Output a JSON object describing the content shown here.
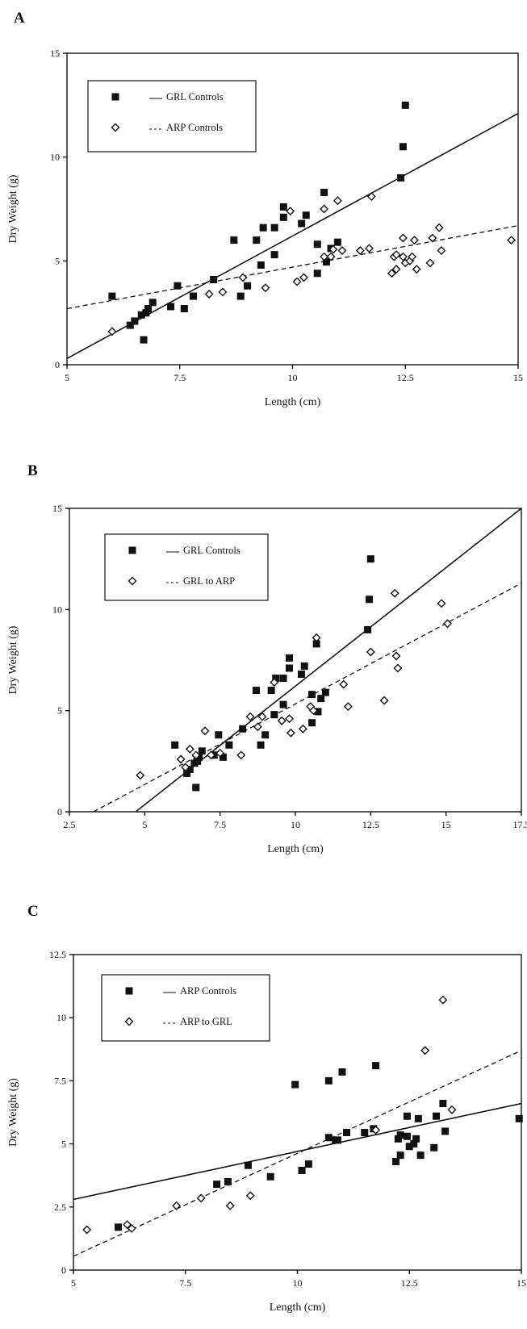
{
  "chart_data": [
    {
      "type": "scatter",
      "panel_label": "A",
      "xlabel": "Length (cm)",
      "ylabel": "Dry Weight (g)",
      "xlim": [
        5,
        15
      ],
      "ylim": [
        0,
        15
      ],
      "xticks": [
        5,
        7.5,
        10,
        12.5,
        15
      ],
      "xtick_labels": [
        "5",
        "7.5",
        "10",
        "12.5",
        "15"
      ],
      "yticks": [
        0,
        5,
        10,
        15
      ],
      "ytick_labels": [
        "0",
        "5",
        "10",
        "15"
      ],
      "legend": "top-left",
      "series": [
        {
          "name": "GRL Controls",
          "marker": "filled-square",
          "line_style": "solid",
          "fit": [
            [
              5,
              0.3
            ],
            [
              15,
              12.1
            ]
          ],
          "points": [
            [
              6,
              3.3
            ],
            [
              6.4,
              1.9
            ],
            [
              6.5,
              2.1
            ],
            [
              6.65,
              2.4
            ],
            [
              6.7,
              1.2
            ],
            [
              6.75,
              2.5
            ],
            [
              6.8,
              2.7
            ],
            [
              6.9,
              3.0
            ],
            [
              7.3,
              2.8
            ],
            [
              7.45,
              3.8
            ],
            [
              7.6,
              2.7
            ],
            [
              7.8,
              3.3
            ],
            [
              8.25,
              4.1
            ],
            [
              8.7,
              6.0
            ],
            [
              8.85,
              3.3
            ],
            [
              9.0,
              3.8
            ],
            [
              9.2,
              6.0
            ],
            [
              9.3,
              4.8
            ],
            [
              9.35,
              6.6
            ],
            [
              9.6,
              5.3
            ],
            [
              9.6,
              6.6
            ],
            [
              9.8,
              7.1
            ],
            [
              9.8,
              7.6
            ],
            [
              10.2,
              6.8
            ],
            [
              10.3,
              7.2
            ],
            [
              10.55,
              5.8
            ],
            [
              10.55,
              4.4
            ],
            [
              10.7,
              8.3
            ],
            [
              10.75,
              4.95
            ],
            [
              10.85,
              5.6
            ],
            [
              11.0,
              5.9
            ],
            [
              12.4,
              9.0
            ],
            [
              12.45,
              10.5
            ],
            [
              12.5,
              12.5
            ]
          ]
        },
        {
          "name": "ARP Controls",
          "marker": "open-diamond",
          "line_style": "dashed",
          "fit": [
            [
              5,
              2.7
            ],
            [
              15,
              6.7
            ]
          ],
          "points": [
            [
              6,
              1.6
            ],
            [
              8.15,
              3.4
            ],
            [
              8.45,
              3.5
            ],
            [
              8.9,
              4.2
            ],
            [
              9.4,
              3.7
            ],
            [
              9.95,
              7.4
            ],
            [
              10.1,
              4.0
            ],
            [
              10.25,
              4.2
            ],
            [
              10.7,
              5.2
            ],
            [
              10.7,
              7.5
            ],
            [
              10.85,
              5.2
            ],
            [
              10.9,
              5.55
            ],
            [
              11.0,
              7.9
            ],
            [
              11.1,
              5.5
            ],
            [
              11.5,
              5.5
            ],
            [
              11.7,
              5.6
            ],
            [
              11.75,
              8.1
            ],
            [
              12.2,
              4.4
            ],
            [
              12.25,
              5.2
            ],
            [
              12.3,
              5.3
            ],
            [
              12.3,
              4.6
            ],
            [
              12.45,
              5.2
            ],
            [
              12.45,
              6.1
            ],
            [
              12.5,
              4.9
            ],
            [
              12.6,
              5.0
            ],
            [
              12.65,
              5.2
            ],
            [
              12.7,
              6.0
            ],
            [
              12.75,
              4.6
            ],
            [
              13.05,
              4.9
            ],
            [
              13.1,
              6.1
            ],
            [
              13.25,
              6.6
            ],
            [
              13.3,
              5.5
            ],
            [
              14.85,
              6.0
            ]
          ]
        }
      ]
    },
    {
      "type": "scatter",
      "panel_label": "B",
      "xlabel": "Length (cm)",
      "ylabel": "Dry Weight (g)",
      "xlim": [
        2.5,
        17.5
      ],
      "ylim": [
        0,
        15
      ],
      "xticks": [
        2.5,
        5,
        7.5,
        10,
        12.5,
        15,
        17.5
      ],
      "xtick_labels": [
        "2.5",
        "5",
        "7.5",
        "10",
        "12.5",
        "15",
        "17.5"
      ],
      "yticks": [
        0,
        5,
        10,
        15
      ],
      "ytick_labels": [
        "0",
        "5",
        "10",
        "15"
      ],
      "legend": "top-left",
      "series": [
        {
          "name": "GRL Controls",
          "marker": "filled-square",
          "line_style": "solid",
          "fit": [
            [
              4.7,
              0
            ],
            [
              17.5,
              15
            ]
          ],
          "points": [
            [
              6,
              3.3
            ],
            [
              6.4,
              1.9
            ],
            [
              6.5,
              2.1
            ],
            [
              6.65,
              2.4
            ],
            [
              6.7,
              1.2
            ],
            [
              6.75,
              2.5
            ],
            [
              6.8,
              2.7
            ],
            [
              6.9,
              3.0
            ],
            [
              7.3,
              2.8
            ],
            [
              7.45,
              3.8
            ],
            [
              7.6,
              2.7
            ],
            [
              7.8,
              3.3
            ],
            [
              8.25,
              4.1
            ],
            [
              8.7,
              6.0
            ],
            [
              8.85,
              3.3
            ],
            [
              9.0,
              3.8
            ],
            [
              9.2,
              6.0
            ],
            [
              9.3,
              4.8
            ],
            [
              9.35,
              6.6
            ],
            [
              9.6,
              5.3
            ],
            [
              9.6,
              6.6
            ],
            [
              9.8,
              7.1
            ],
            [
              9.8,
              7.6
            ],
            [
              10.2,
              6.8
            ],
            [
              10.3,
              7.2
            ],
            [
              10.55,
              5.8
            ],
            [
              10.55,
              4.4
            ],
            [
              10.7,
              8.3
            ],
            [
              10.75,
              4.95
            ],
            [
              10.85,
              5.6
            ],
            [
              11.0,
              5.9
            ],
            [
              12.4,
              9.0
            ],
            [
              12.45,
              10.5
            ],
            [
              12.5,
              12.5
            ]
          ]
        },
        {
          "name": "GRL to ARP",
          "marker": "open-diamond",
          "line_style": "dashed",
          "fit": [
            [
              3.3,
              0
            ],
            [
              17.5,
              11.3
            ]
          ],
          "points": [
            [
              4.85,
              1.8
            ],
            [
              6.2,
              2.6
            ],
            [
              6.35,
              2.2
            ],
            [
              6.5,
              3.1
            ],
            [
              6.7,
              2.8
            ],
            [
              7.0,
              4.0
            ],
            [
              7.2,
              2.8
            ],
            [
              7.5,
              2.9
            ],
            [
              8.2,
              2.8
            ],
            [
              8.5,
              4.7
            ],
            [
              8.75,
              4.2
            ],
            [
              8.9,
              4.7
            ],
            [
              9.3,
              6.4
            ],
            [
              9.55,
              4.5
            ],
            [
              9.8,
              4.6
            ],
            [
              9.85,
              3.9
            ],
            [
              10.25,
              4.1
            ],
            [
              10.5,
              5.2
            ],
            [
              10.6,
              5.0
            ],
            [
              10.7,
              8.6
            ],
            [
              11.6,
              6.3
            ],
            [
              11.75,
              5.2
            ],
            [
              12.5,
              7.9
            ],
            [
              12.95,
              5.5
            ],
            [
              13.3,
              10.8
            ],
            [
              13.35,
              7.7
            ],
            [
              13.4,
              7.1
            ],
            [
              14.85,
              10.3
            ],
            [
              15.05,
              9.3
            ]
          ]
        }
      ]
    },
    {
      "type": "scatter",
      "panel_label": "C",
      "xlabel": "Length (cm)",
      "ylabel": "Dry Weight (g)",
      "xlim": [
        5,
        15
      ],
      "ylim": [
        0,
        12.5
      ],
      "xticks": [
        5,
        7.5,
        10,
        12.5,
        15
      ],
      "xtick_labels": [
        "5",
        "7.5",
        "10",
        "12.5",
        "15"
      ],
      "yticks": [
        0,
        2.5,
        5,
        7.5,
        10,
        12.5
      ],
      "ytick_labels": [
        "0",
        "2.5",
        "5",
        "7.5",
        "10",
        "12.5"
      ],
      "legend": "top-left",
      "series": [
        {
          "name": "ARP Controls",
          "marker": "filled-square",
          "line_style": "solid",
          "fit": [
            [
              5,
              2.8
            ],
            [
              15,
              6.6
            ]
          ],
          "points": [
            [
              6.0,
              1.7
            ],
            [
              8.2,
              3.4
            ],
            [
              8.45,
              3.5
            ],
            [
              8.9,
              4.15
            ],
            [
              9.4,
              3.7
            ],
            [
              9.95,
              7.35
            ],
            [
              10.1,
              3.95
            ],
            [
              10.25,
              4.2
            ],
            [
              10.7,
              5.25
            ],
            [
              10.7,
              7.5
            ],
            [
              10.85,
              5.15
            ],
            [
              10.9,
              5.15
            ],
            [
              11.0,
              7.85
            ],
            [
              11.1,
              5.45
            ],
            [
              11.5,
              5.45
            ],
            [
              11.7,
              5.6
            ],
            [
              11.75,
              8.1
            ],
            [
              12.2,
              4.3
            ],
            [
              12.25,
              5.2
            ],
            [
              12.3,
              5.35
            ],
            [
              12.3,
              4.55
            ],
            [
              12.45,
              5.3
            ],
            [
              12.45,
              6.1
            ],
            [
              12.5,
              4.9
            ],
            [
              12.6,
              5.0
            ],
            [
              12.65,
              5.2
            ],
            [
              12.7,
              6.0
            ],
            [
              12.75,
              4.55
            ],
            [
              13.05,
              4.85
            ],
            [
              13.1,
              6.1
            ],
            [
              13.25,
              6.6
            ],
            [
              13.3,
              5.5
            ],
            [
              14.95,
              6.0
            ]
          ]
        },
        {
          "name": "ARP to GRL",
          "marker": "open-diamond",
          "line_style": "dashed",
          "fit": [
            [
              5,
              0.55
            ],
            [
              15,
              8.7
            ]
          ],
          "points": [
            [
              5.3,
              1.6
            ],
            [
              6.2,
              1.8
            ],
            [
              6.3,
              1.65
            ],
            [
              7.3,
              2.55
            ],
            [
              7.85,
              2.85
            ],
            [
              8.5,
              2.55
            ],
            [
              8.95,
              2.95
            ],
            [
              11.75,
              5.55
            ],
            [
              12.85,
              8.7
            ],
            [
              13.25,
              10.7
            ],
            [
              13.45,
              6.35
            ]
          ]
        }
      ]
    }
  ]
}
